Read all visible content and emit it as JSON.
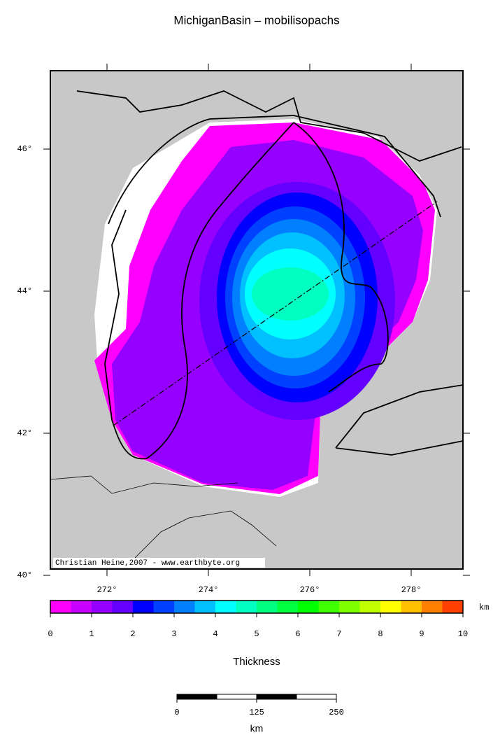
{
  "map": {
    "title": "MichiganBasin – mobilisopachs",
    "lat_ticks": [
      {
        "value": 40,
        "label": "40°"
      },
      {
        "value": 42,
        "label": "42°"
      },
      {
        "value": 44,
        "label": "44°"
      },
      {
        "value": 46,
        "label": "46°"
      }
    ],
    "lon_ticks": [
      {
        "value": 272,
        "label": "272°"
      },
      {
        "value": 274,
        "label": "274°"
      },
      {
        "value": 276,
        "label": "276°"
      },
      {
        "value": 278,
        "label": "278°"
      }
    ],
    "credit": "Christian Heine,2007 - www.earthbyte.org"
  },
  "colorbar": {
    "label": "Thickness",
    "unit": "km",
    "ticks": [
      0,
      1,
      2,
      3,
      4,
      5,
      6,
      7,
      8,
      9,
      10
    ],
    "colors": [
      "#ff00ff",
      "#c800ff",
      "#9600ff",
      "#6400ff",
      "#0000ff",
      "#0040ff",
      "#0080ff",
      "#00c0ff",
      "#00ffff",
      "#00ffc0",
      "#00ff80",
      "#00ff40",
      "#00ff00",
      "#40ff00",
      "#80ff00",
      "#c0ff00",
      "#ffff00",
      "#ffc000",
      "#ff8000",
      "#ff4000"
    ]
  },
  "scalebar": {
    "ticks": [
      0,
      125,
      250
    ],
    "unit": "km"
  }
}
